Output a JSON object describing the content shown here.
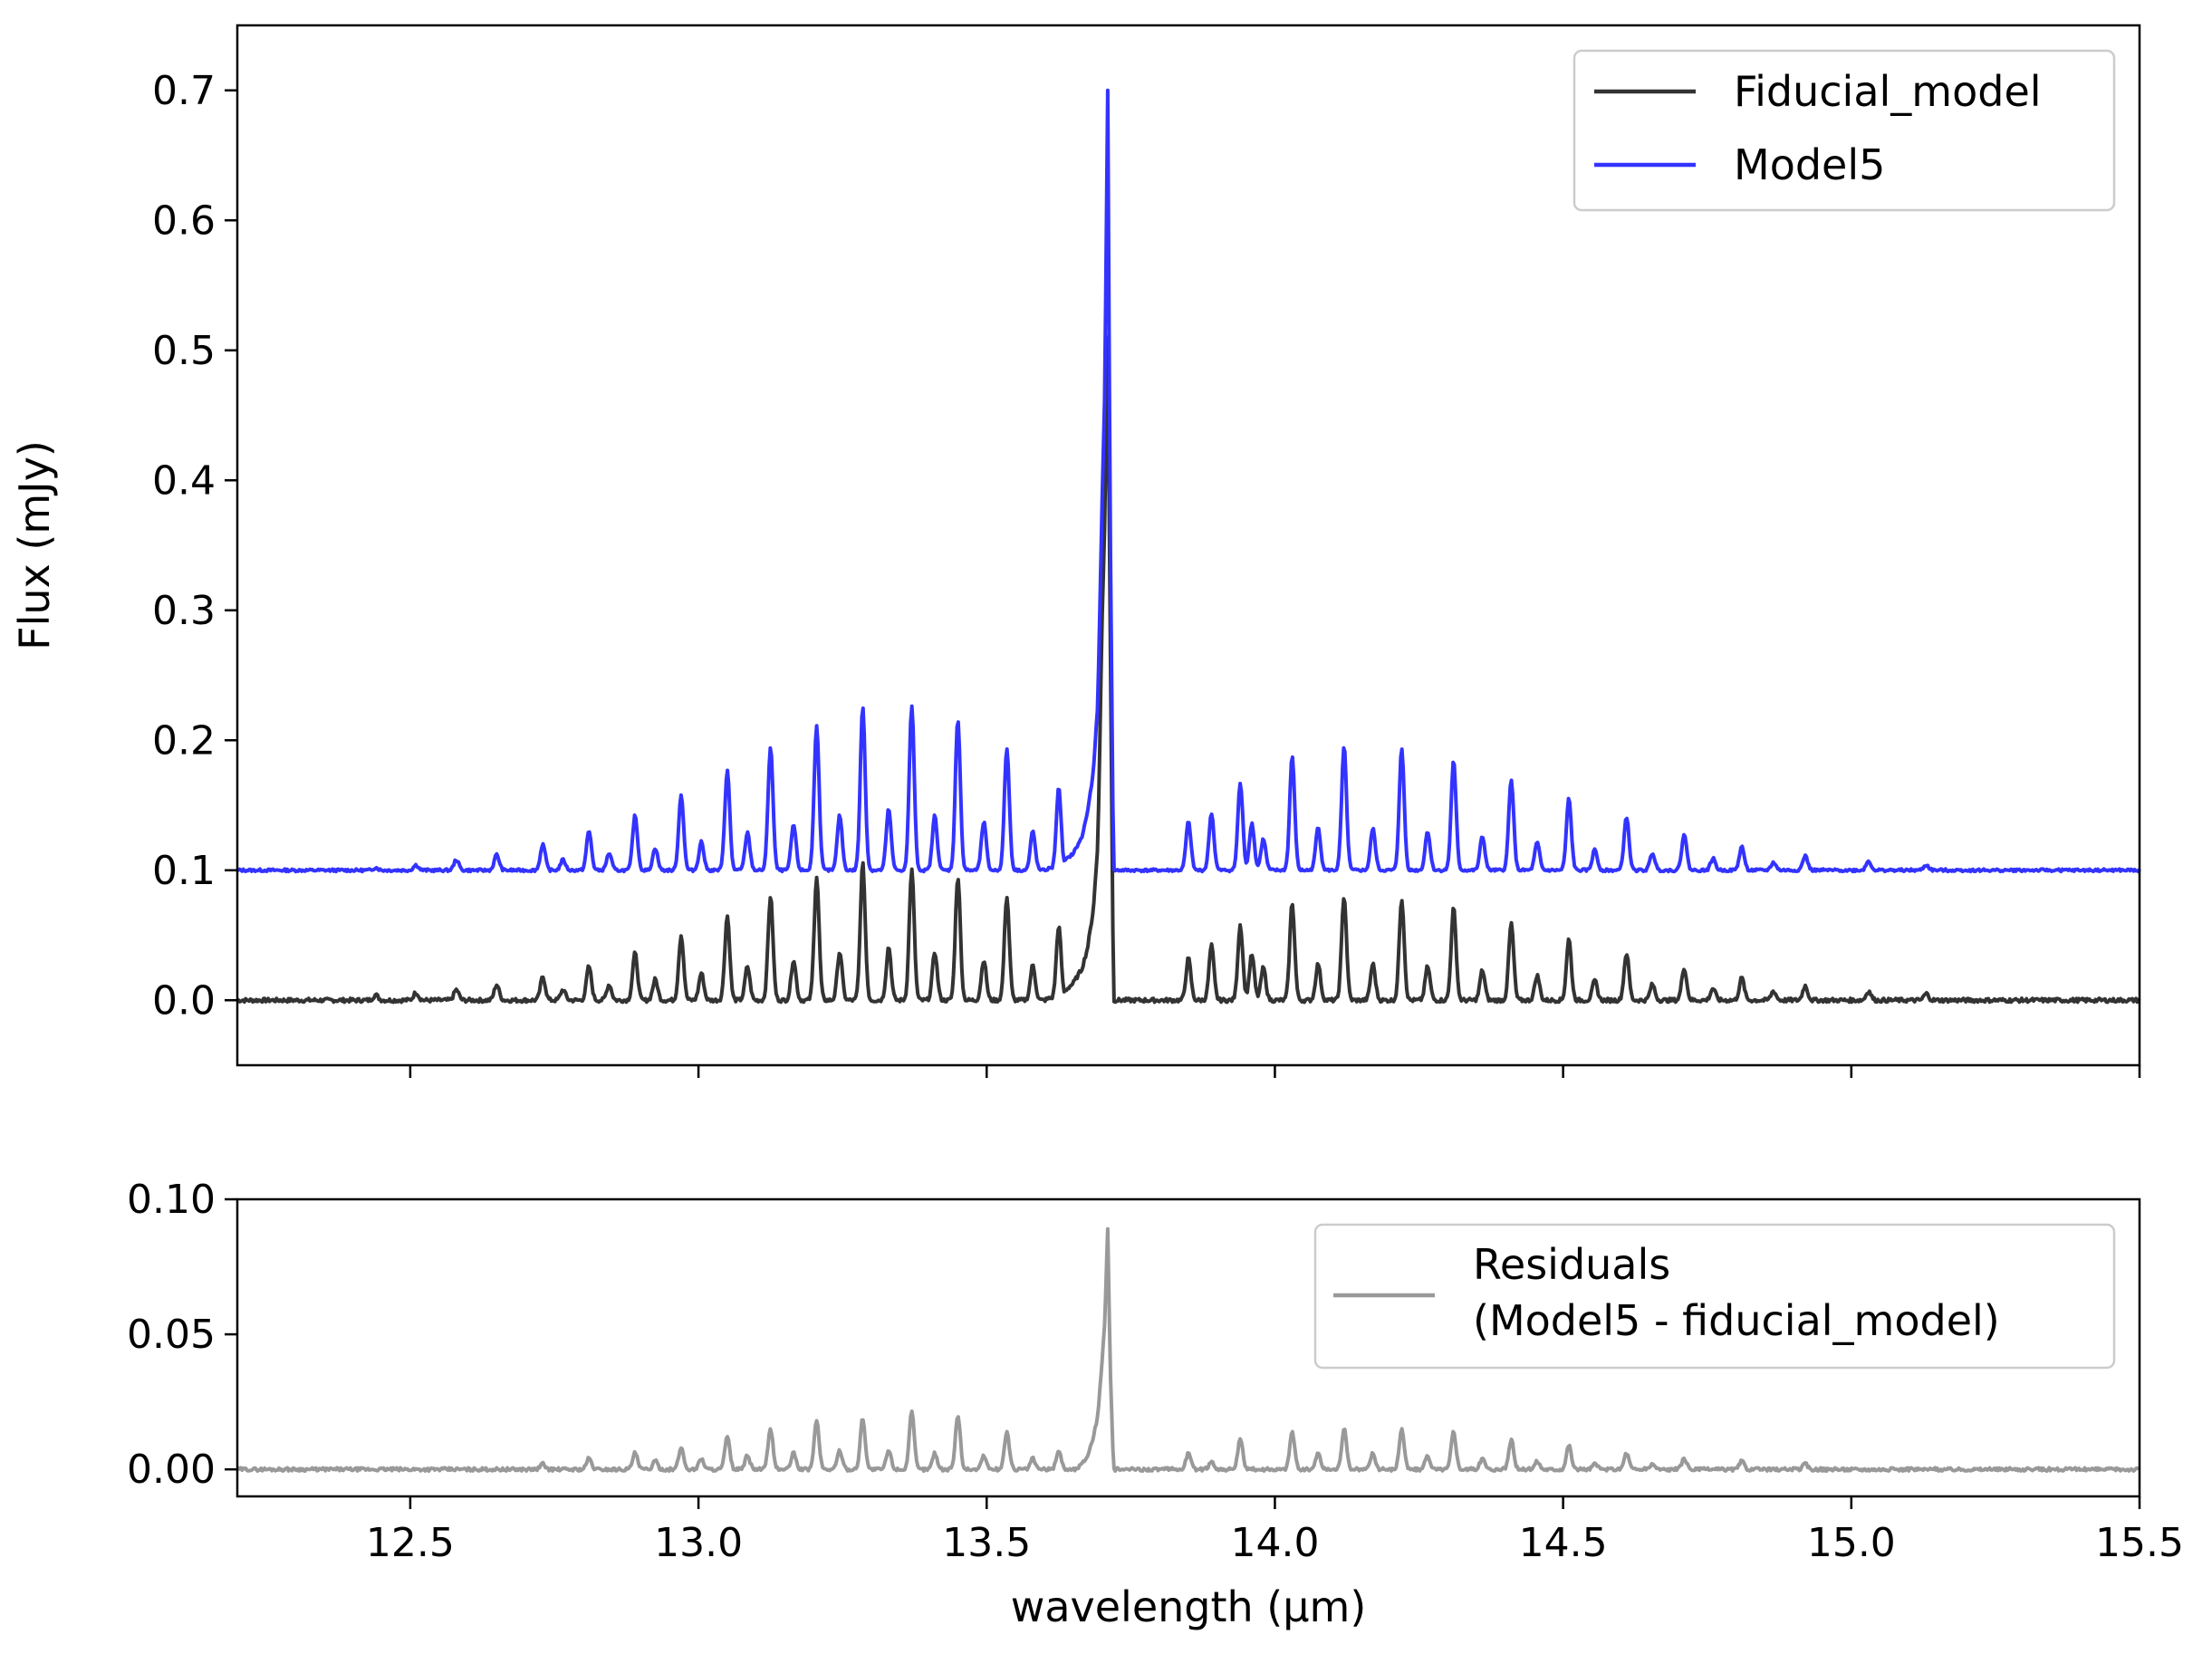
{
  "chart_data": [
    {
      "type": "line",
      "panel": "top",
      "ylabel": "Flux (mJy)",
      "xlabel": "",
      "xlim": [
        12.2,
        15.5
      ],
      "ylim": [
        -0.05,
        0.75
      ],
      "yticks": [
        0.0,
        0.1,
        0.2,
        0.3,
        0.4,
        0.5,
        0.6,
        0.7
      ],
      "ytick_labels": [
        "0.0",
        "0.1",
        "0.2",
        "0.3",
        "0.4",
        "0.5",
        "0.6",
        "0.7"
      ],
      "xticks": [
        12.5,
        13.0,
        13.5,
        14.0,
        14.5,
        15.0,
        15.5
      ],
      "xtick_labels_visible": false,
      "grid": false,
      "legend_position": "top-right",
      "series": [
        {
          "name": "Fiducial_model",
          "color": "#333333",
          "baseline": 0.0,
          "peak_x": 13.71,
          "peak_value": 0.51
        },
        {
          "name": "Model5",
          "color": "#3333ff",
          "baseline": 0.1,
          "peak_x": 13.71,
          "peak_value": 0.7
        }
      ],
      "lines": {
        "x": [
          12.44,
          12.51,
          12.58,
          12.65,
          12.73,
          12.81,
          12.89,
          12.97,
          13.05,
          13.125,
          13.205,
          13.285,
          13.37,
          13.45,
          13.535,
          13.625,
          13.85,
          13.89,
          13.94,
          14.03,
          14.12,
          14.22,
          14.31,
          14.41,
          14.51,
          14.61,
          14.71,
          14.81,
          14.92,
          15.03,
          15.13
        ],
        "fiducial_values": [
          0.004,
          0.006,
          0.008,
          0.012,
          0.018,
          0.026,
          0.036,
          0.05,
          0.065,
          0.08,
          0.095,
          0.105,
          0.1,
          0.095,
          0.08,
          0.057,
          0.032,
          0.042,
          0.058,
          0.075,
          0.08,
          0.078,
          0.071,
          0.059,
          0.047,
          0.036,
          0.025,
          0.017,
          0.011,
          0.007,
          0.005
        ],
        "model5_values": [
          0.102,
          0.104,
          0.108,
          0.112,
          0.12,
          0.13,
          0.142,
          0.158,
          0.177,
          0.195,
          0.212,
          0.226,
          0.226,
          0.216,
          0.194,
          0.163,
          0.137,
          0.144,
          0.167,
          0.188,
          0.195,
          0.193,
          0.184,
          0.17,
          0.155,
          0.141,
          0.128,
          0.118,
          0.111,
          0.107,
          0.104
        ]
      },
      "minor_lines": {
        "x": [
          12.765,
          12.845,
          12.925,
          13.005,
          13.085,
          13.165,
          13.245,
          13.33,
          13.41,
          13.495,
          13.58,
          13.96,
          13.98,
          14.075,
          14.17,
          14.265,
          14.36,
          14.455,
          14.555,
          14.655,
          14.76,
          14.865
        ],
        "fiducial_values": [
          0.008,
          0.012,
          0.016,
          0.021,
          0.026,
          0.031,
          0.037,
          0.041,
          0.037,
          0.031,
          0.027,
          0.035,
          0.025,
          0.028,
          0.028,
          0.026,
          0.023,
          0.019,
          0.015,
          0.012,
          0.009,
          0.007
        ],
        "model5_values": [
          0.108,
          0.113,
          0.117,
          0.122,
          0.129,
          0.135,
          0.142,
          0.147,
          0.142,
          0.137,
          0.13,
          0.136,
          0.124,
          0.133,
          0.132,
          0.13,
          0.126,
          0.121,
          0.116,
          0.113,
          0.109,
          0.106
        ]
      },
      "q_branch": {
        "x": [
          13.6,
          13.63,
          13.65,
          13.665,
          13.675,
          13.685,
          13.693,
          13.7,
          13.705,
          13.71,
          13.714,
          13.72
        ],
        "fiducial_values": [
          0.0,
          0.005,
          0.013,
          0.024,
          0.04,
          0.07,
          0.12,
          0.29,
          0.37,
          0.51,
          0.3,
          0.0
        ],
        "model5_values": [
          0.1,
          0.105,
          0.113,
          0.125,
          0.145,
          0.175,
          0.23,
          0.38,
          0.47,
          0.7,
          0.38,
          0.1
        ]
      }
    },
    {
      "type": "line",
      "panel": "bottom",
      "xlabel": "wavelength (μm)",
      "ylabel": "",
      "xlim": [
        12.2,
        15.5
      ],
      "ylim": [
        -0.01,
        0.1
      ],
      "yticks": [
        0.0,
        0.05,
        0.1
      ],
      "ytick_labels": [
        "0.00",
        "0.05",
        "0.10"
      ],
      "xticks": [
        12.5,
        13.0,
        13.5,
        14.0,
        14.5,
        15.0,
        15.5
      ],
      "xtick_labels": [
        "12.5",
        "13.0",
        "13.5",
        "14.0",
        "14.5",
        "15.0",
        "15.5"
      ],
      "grid": false,
      "legend_position": "top-right",
      "series": [
        {
          "name": "Residuals\n(Model5 - fiducial_model)",
          "name_lines": [
            "Residuals",
            "(Model5 - fiducial_model)"
          ],
          "color": "#999999",
          "baseline": 0.0,
          "peak_x": 13.71,
          "peak_value": 0.089
        }
      ],
      "lines": {
        "x": [
          12.73,
          12.81,
          12.89,
          12.97,
          13.05,
          13.125,
          13.205,
          13.285,
          13.37,
          13.45,
          13.535,
          13.625,
          13.85,
          13.94,
          14.03,
          14.12,
          14.22,
          14.31,
          14.41,
          14.51,
          14.61,
          14.71,
          14.81,
          14.92
        ],
        "values": [
          0.002,
          0.004,
          0.006,
          0.008,
          0.012,
          0.015,
          0.018,
          0.019,
          0.021,
          0.02,
          0.014,
          0.007,
          0.006,
          0.011,
          0.014,
          0.015,
          0.015,
          0.014,
          0.011,
          0.009,
          0.006,
          0.004,
          0.003,
          0.002
        ]
      },
      "minor_lines": {
        "x": [
          12.925,
          13.005,
          13.085,
          13.165,
          13.245,
          13.33,
          13.41,
          13.495,
          13.58,
          13.89,
          14.075,
          14.17,
          14.265,
          14.36,
          14.455,
          14.555,
          14.655
        ],
        "values": [
          0.003,
          0.004,
          0.005,
          0.006,
          0.007,
          0.007,
          0.006,
          0.005,
          0.004,
          0.003,
          0.006,
          0.006,
          0.005,
          0.004,
          0.003,
          0.002,
          0.002
        ]
      },
      "q_branch": {
        "x": [
          13.6,
          13.63,
          13.65,
          13.665,
          13.675,
          13.685,
          13.693,
          13.7,
          13.705,
          13.71,
          13.714,
          13.72
        ],
        "values": [
          -0.002,
          -0.002,
          -0.001,
          0.002,
          0.005,
          0.012,
          0.02,
          0.04,
          0.055,
          0.089,
          0.04,
          0.0
        ]
      }
    }
  ]
}
